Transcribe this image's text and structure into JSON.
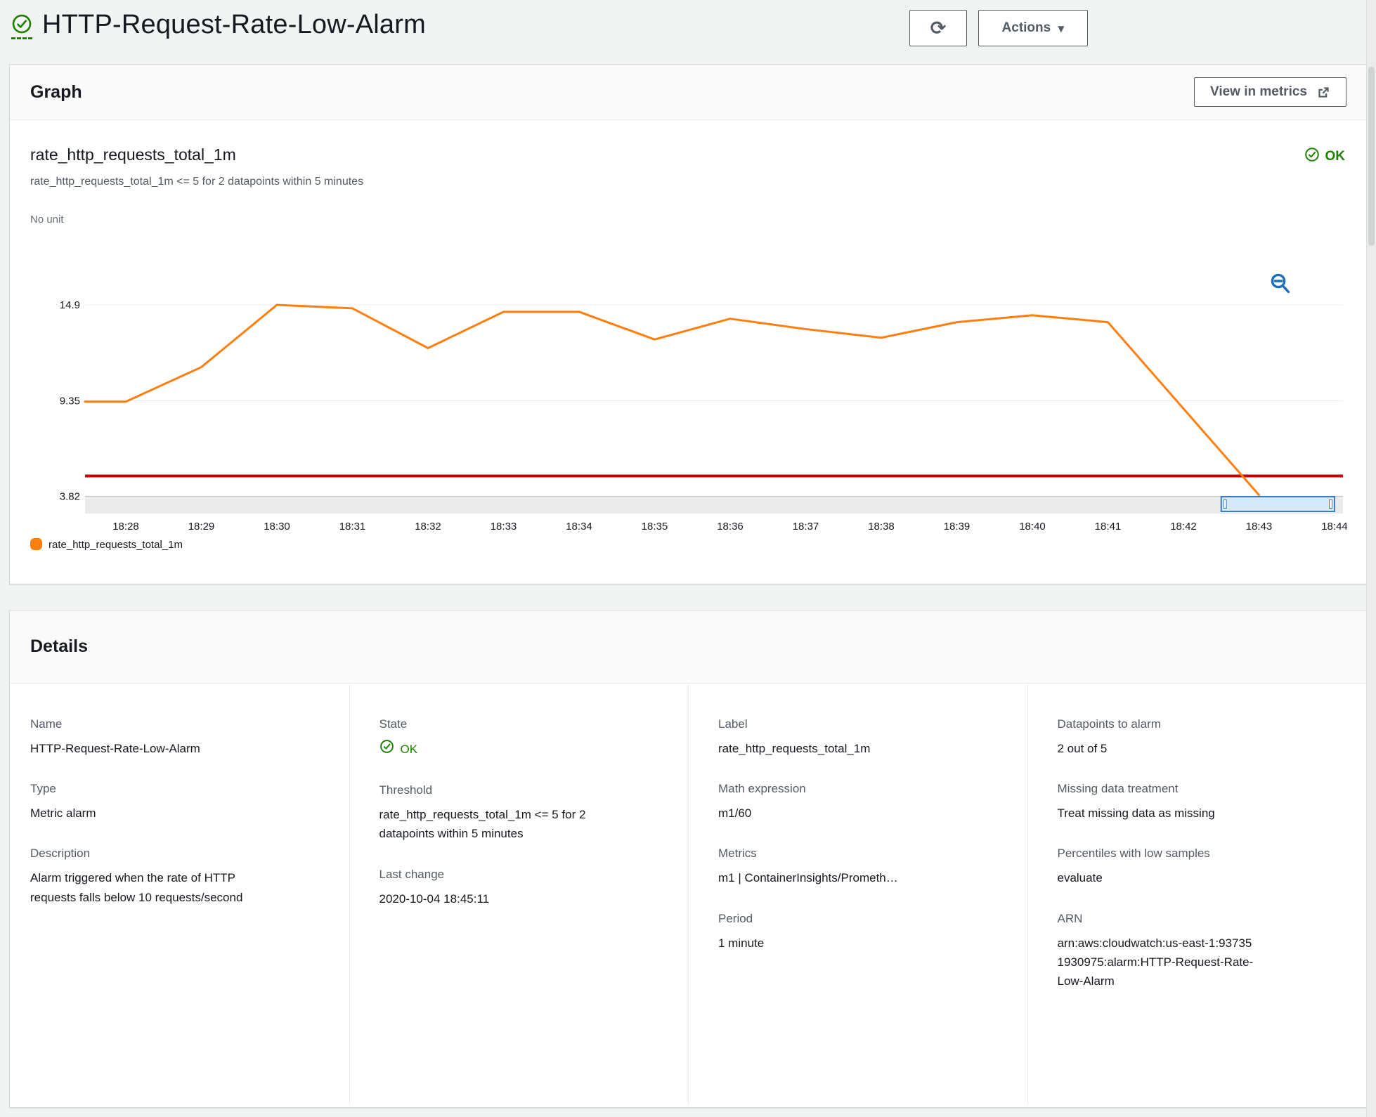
{
  "theme": {
    "ok_green": "#1d8102",
    "series_orange": "#ff7f0e",
    "threshold_red": "#c00000",
    "link_blue": "#1c6fbf"
  },
  "icons": {
    "refresh": "⟳",
    "caret": "▼"
  },
  "header": {
    "title": "HTTP-Request-Rate-Low-Alarm",
    "actions_label": "Actions"
  },
  "graph_panel": {
    "heading": "Graph",
    "view_in_metrics_label": "View in metrics",
    "status": "OK",
    "chart_title": "rate_http_requests_total_1m",
    "chart_subtitle": "rate_http_requests_total_1m <= 5 for 2 datapoints within 5 minutes",
    "y_axis_unit": "No unit"
  },
  "chart_data": {
    "type": "line",
    "title": "rate_http_requests_total_1m",
    "legend": "rate_http_requests_total_1m",
    "legend_position": "bottom-left",
    "grid": true,
    "y_axis_unit": "No unit",
    "y_ticks": [
      14.9,
      9.35,
      3.82
    ],
    "ylim": [
      3.3,
      16.2
    ],
    "x_ticks": [
      "18:28",
      "18:29",
      "18:30",
      "18:31",
      "18:32",
      "18:33",
      "18:34",
      "18:35",
      "18:36",
      "18:37",
      "18:38",
      "18:39",
      "18:40",
      "18:41",
      "18:42",
      "18:43",
      "18:44"
    ],
    "series": [
      {
        "name": "rate_http_requests_total_1m",
        "color": "#ff7f0e",
        "values": [
          9.3,
          11.3,
          14.9,
          14.7,
          12.4,
          14.5,
          14.5,
          12.9,
          14.1,
          13.5,
          13.0,
          13.9,
          14.3,
          13.9,
          8.9,
          3.9
        ]
      }
    ],
    "threshold": {
      "value": 5,
      "comparison": "<= 5",
      "color": "#c00000"
    },
    "zoom_selection_range": {
      "from_tick_index": 14.5,
      "to_tick_index": 16
    }
  },
  "details_panel": {
    "heading": "Details",
    "columns": [
      {
        "fields": [
          {
            "label": "Name",
            "value": "HTTP-Request-Rate-Low-Alarm"
          },
          {
            "label": "Type",
            "value": "Metric alarm"
          },
          {
            "label": "Description",
            "value": "Alarm triggered when the rate of HTTP requests falls below 10 requests/second"
          }
        ]
      },
      {
        "fields": [
          {
            "label": "State",
            "value": "OK"
          },
          {
            "label": "Threshold",
            "value": "rate_http_requests_total_1m <= 5 for 2 datapoints within 5 minutes"
          },
          {
            "label": "Last change",
            "value": "2020-10-04 18:45:11"
          }
        ]
      },
      {
        "fields": [
          {
            "label": "Label",
            "value": "rate_http_requests_total_1m"
          },
          {
            "label": "Math expression",
            "value": "m1/60"
          },
          {
            "label": "Metrics",
            "value": "m1 | ContainerInsights/Prometh…"
          },
          {
            "label": "Period",
            "value": "1 minute"
          }
        ]
      },
      {
        "fields": [
          {
            "label": "Datapoints to alarm",
            "value": "2 out of 5"
          },
          {
            "label": "Missing data treatment",
            "value": "Treat missing data as missing"
          },
          {
            "label": "Percentiles with low samples",
            "value": "evaluate"
          },
          {
            "label": "ARN",
            "value": "arn:aws:cloudwatch:us-east-1:937351930975:alarm:HTTP-Request-Rate-Low-Alarm"
          }
        ]
      }
    ]
  }
}
